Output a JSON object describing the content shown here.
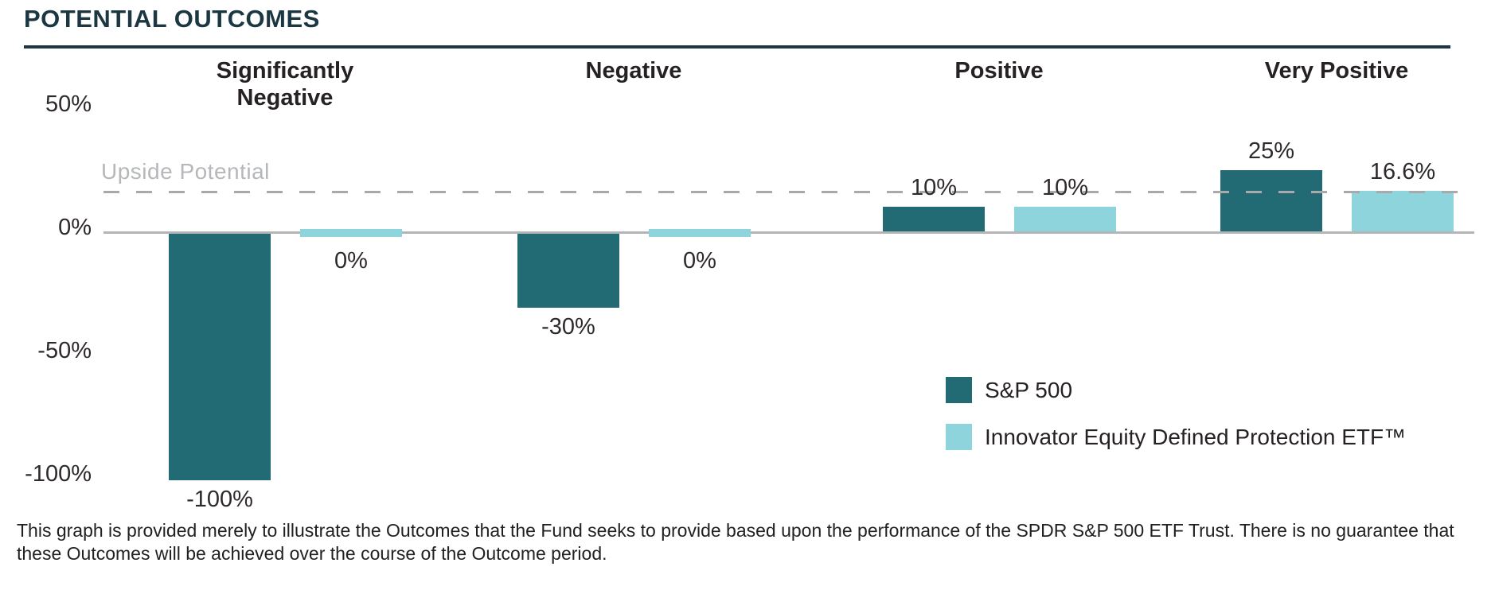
{
  "page": {
    "title": "POTENTIAL OUTCOMES",
    "footnote": "This graph is provided merely to illustrate the Outcomes that the Fund seeks to provide based upon the performance of the SPDR S&P 500 ETF Trust. There is no guarantee that these Outcomes will be achieved over the course of the Outcome period."
  },
  "chart_data": {
    "type": "bar",
    "title": "POTENTIAL OUTCOMES",
    "categories": [
      "Significantly Negative",
      "Negative",
      "Positive",
      "Very Positive"
    ],
    "series": [
      {
        "key": "sp500",
        "name": "S&P 500",
        "color": "#226b74",
        "values": [
          -100,
          -30,
          10,
          25
        ],
        "labels": [
          "-100%",
          "-30%",
          "10%",
          "25%"
        ]
      },
      {
        "key": "etf",
        "name": "Innovator Equity Defined Protection ETF™",
        "color": "#8ed4dc",
        "values": [
          0,
          0,
          10,
          16.6
        ],
        "labels": [
          "0%",
          "0%",
          "10%",
          "16.6%"
        ]
      }
    ],
    "y_axis": {
      "ticks": [
        "50%",
        "0%",
        "-50%",
        "-100%"
      ],
      "tick_values": [
        50,
        0,
        -50,
        -100
      ],
      "ylim": [
        -100,
        50
      ]
    },
    "reference_line": {
      "label": "Upside Potential",
      "value": 16.6,
      "style": "dashed",
      "color": "#a7a9ab"
    },
    "grid": false,
    "legend_position": "bottom-right",
    "xlabel": "",
    "ylabel": ""
  }
}
